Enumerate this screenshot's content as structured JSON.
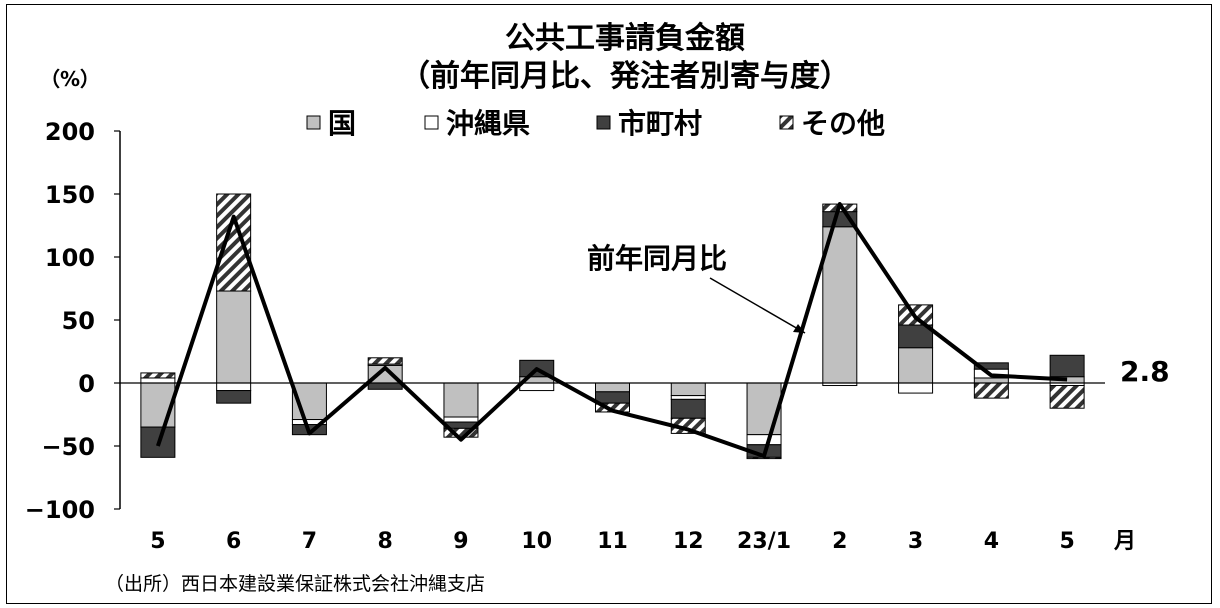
{
  "chart_data": {
    "type": "bar",
    "title": "公共工事請負金額",
    "subtitle": "（前年同月比、発注者別寄与度）",
    "unit_label": "（%）",
    "x_unit": "月",
    "source": "（出所）西日本建設業保証株式会社沖縄支店",
    "ylim": [
      -100,
      200
    ],
    "yticks": [
      "200",
      "150",
      "100",
      "50",
      "0",
      "−50",
      "−100"
    ],
    "categories": [
      "5",
      "6",
      "7",
      "8",
      "9",
      "10",
      "11",
      "12",
      "23/1",
      "2",
      "3",
      "4",
      "5"
    ],
    "series": [
      {
        "name": "国",
        "values": [
          -35,
          73,
          -29,
          14,
          -27,
          5,
          -7,
          -10,
          -41,
          124,
          28,
          4,
          5
        ]
      },
      {
        "name": "沖縄県",
        "values": [
          4,
          -6,
          -4,
          1,
          -4,
          -6,
          0,
          -3,
          -8,
          -2,
          -8,
          7,
          -2
        ]
      },
      {
        "name": "市町村",
        "values": [
          -24,
          -10,
          -8,
          -5,
          -5,
          13,
          -9,
          -15,
          -10,
          12,
          18,
          5,
          17
        ]
      },
      {
        "name": "その他",
        "values": [
          4,
          77,
          0,
          5,
          -7,
          0,
          -7,
          -12,
          -1,
          6,
          16,
          -12,
          -18
        ]
      }
    ],
    "line": {
      "name": "前年同月比",
      "values": [
        -50,
        132,
        -40,
        12,
        -45,
        11,
        -22,
        -37,
        -58,
        142,
        52,
        6,
        2.8
      ]
    },
    "annotations": {
      "line_label": "前年同月比",
      "last_value": "2.8"
    },
    "grid": false,
    "legend_position": "top"
  }
}
